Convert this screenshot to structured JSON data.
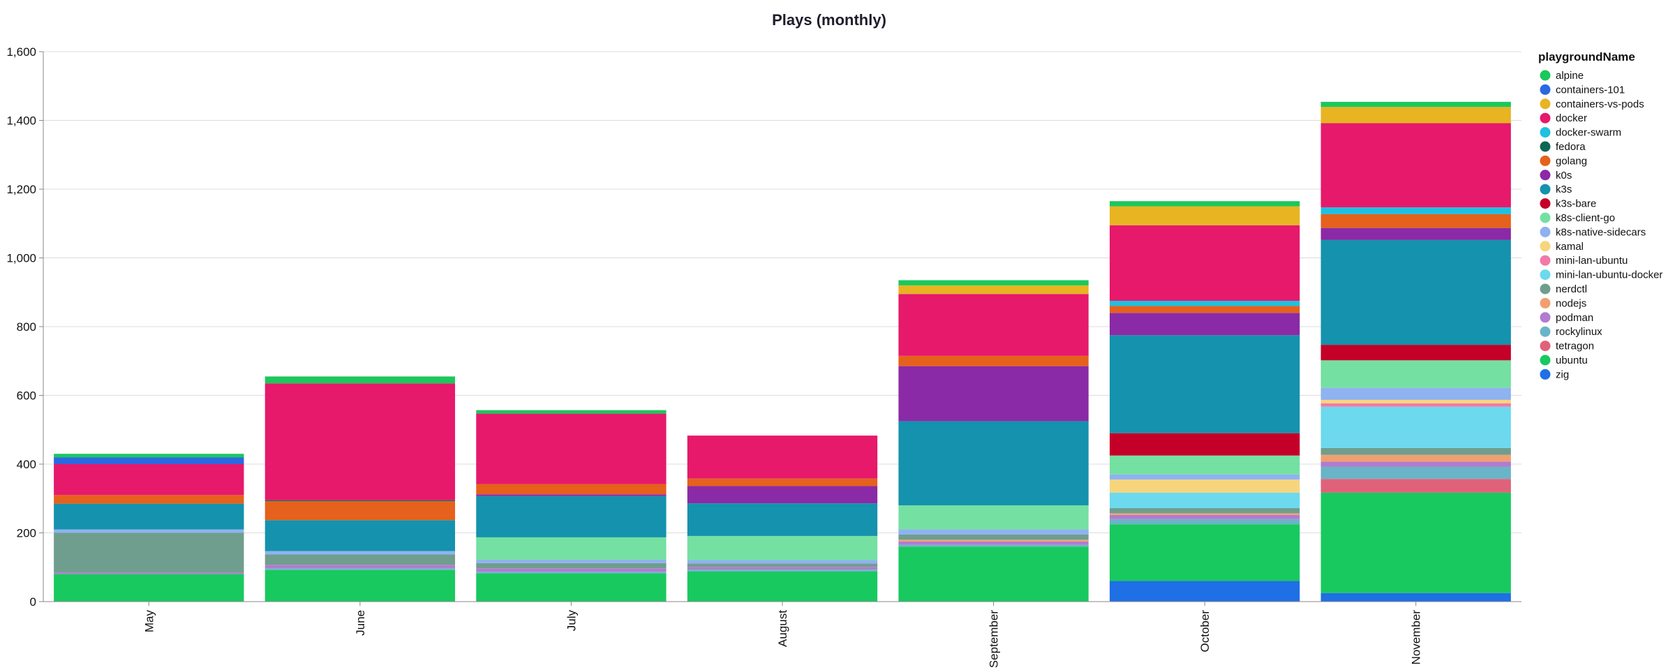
{
  "chart_data": {
    "type": "bar",
    "stacked": true,
    "title": "Plays (monthly)",
    "xlabel": "",
    "ylabel": "",
    "ylim": [
      0,
      1600
    ],
    "yticks": [
      0,
      200,
      400,
      600,
      800,
      1000,
      1200,
      1400,
      1600
    ],
    "ytick_labels": [
      "0",
      "200",
      "400",
      "600",
      "800",
      "1,000",
      "1,200",
      "1,400",
      "1,600"
    ],
    "grid": true,
    "legend_title": "playgroundName",
    "legend_position": "right",
    "categories": [
      "May",
      "June",
      "July",
      "August",
      "September",
      "October",
      "November"
    ],
    "series": [
      {
        "name": "zig",
        "color": "#1f6fe5",
        "values": [
          0,
          0,
          0,
          0,
          0,
          60,
          25
        ]
      },
      {
        "name": "ubuntu",
        "color": "#18c95f",
        "values": [
          80,
          92,
          82,
          88,
          160,
          165,
          292
        ]
      },
      {
        "name": "tetragon",
        "color": "#e0627a",
        "values": [
          0,
          0,
          0,
          0,
          0,
          0,
          40
        ]
      },
      {
        "name": "rockylinux",
        "color": "#6ab4c8",
        "values": [
          0,
          5,
          5,
          5,
          5,
          15,
          35
        ]
      },
      {
        "name": "podman",
        "color": "#b07cd0",
        "values": [
          5,
          10,
          10,
          8,
          10,
          12,
          15
        ]
      },
      {
        "name": "nodejs",
        "color": "#f0a070",
        "values": [
          0,
          0,
          0,
          0,
          5,
          5,
          20
        ]
      },
      {
        "name": "nerdctl",
        "color": "#6f9e8e",
        "values": [
          115,
          30,
          15,
          10,
          15,
          15,
          20
        ]
      },
      {
        "name": "mini-lan-ubuntu-docker",
        "color": "#6cd9ee",
        "values": [
          0,
          0,
          0,
          0,
          0,
          45,
          120
        ]
      },
      {
        "name": "mini-lan-ubuntu",
        "color": "#f27aa8",
        "values": [
          0,
          0,
          0,
          0,
          0,
          0,
          10
        ]
      },
      {
        "name": "kamal",
        "color": "#f6d57c",
        "values": [
          0,
          0,
          0,
          0,
          0,
          38,
          10
        ]
      },
      {
        "name": "k8s-native-sidecars",
        "color": "#8fb2f0",
        "values": [
          10,
          10,
          10,
          10,
          15,
          15,
          35
        ]
      },
      {
        "name": "k8s-client-go",
        "color": "#74e0a2",
        "values": [
          0,
          0,
          65,
          70,
          70,
          55,
          80
        ]
      },
      {
        "name": "k3s-bare",
        "color": "#c40028",
        "values": [
          0,
          0,
          0,
          0,
          0,
          65,
          45
        ]
      },
      {
        "name": "k3s",
        "color": "#1592ad",
        "values": [
          75,
          90,
          120,
          95,
          245,
          285,
          305
        ]
      },
      {
        "name": "k0s",
        "color": "#8a2aa6",
        "values": [
          0,
          0,
          5,
          50,
          160,
          65,
          35
        ]
      },
      {
        "name": "golang",
        "color": "#e5611c",
        "values": [
          25,
          55,
          30,
          22,
          30,
          20,
          40
        ]
      },
      {
        "name": "fedora",
        "color": "#116655",
        "values": [
          0,
          3,
          0,
          0,
          0,
          0,
          0
        ]
      },
      {
        "name": "docker-swarm",
        "color": "#1fc0e0",
        "values": [
          0,
          0,
          0,
          0,
          0,
          15,
          20
        ]
      },
      {
        "name": "docker",
        "color": "#e6196b",
        "values": [
          90,
          340,
          205,
          125,
          180,
          220,
          245
        ]
      },
      {
        "name": "containers-vs-pods",
        "color": "#e8b422",
        "values": [
          0,
          0,
          0,
          0,
          25,
          55,
          47
        ]
      },
      {
        "name": "containers-101",
        "color": "#2b69e0",
        "values": [
          20,
          0,
          0,
          0,
          0,
          0,
          0
        ]
      },
      {
        "name": "alpine",
        "color": "#1ac85c",
        "values": [
          10,
          20,
          10,
          0,
          15,
          15,
          15
        ]
      }
    ]
  }
}
